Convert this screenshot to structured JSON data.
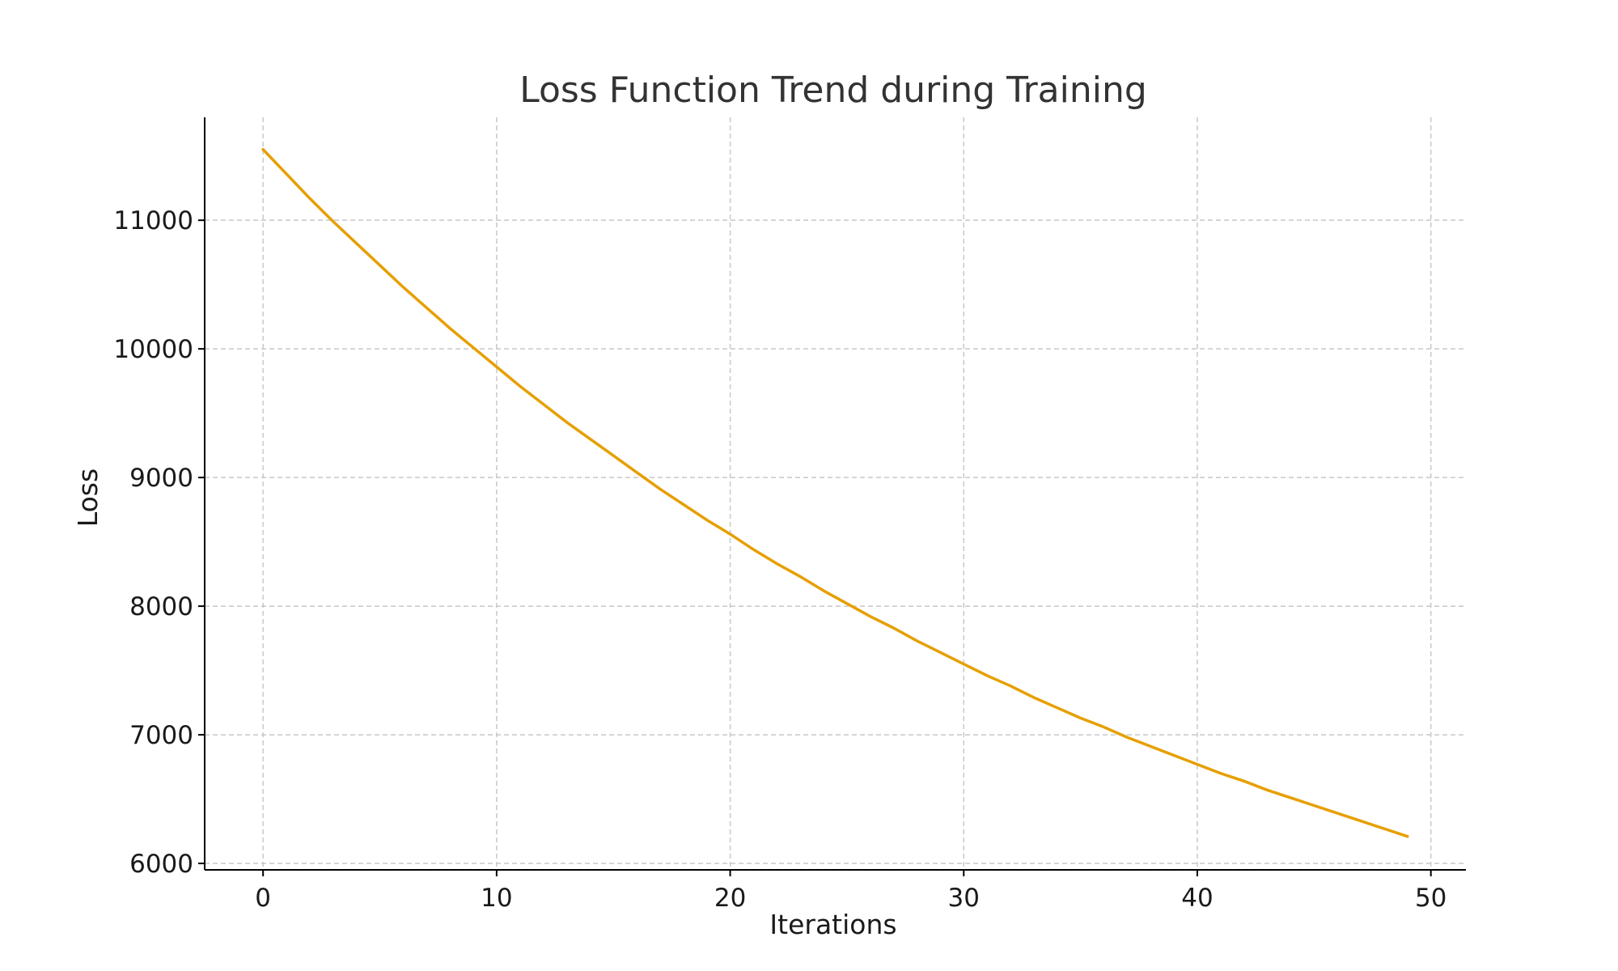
{
  "chart_data": {
    "type": "line",
    "title": "Loss Function Trend during Training",
    "xlabel": "Iterations",
    "ylabel": "Loss",
    "xlim": [
      -2.5,
      51.5
    ],
    "ylim": [
      5950,
      11800
    ],
    "grid": true,
    "xticks": [
      0,
      10,
      20,
      30,
      40,
      50
    ],
    "yticks": [
      6000,
      7000,
      8000,
      9000,
      10000,
      11000
    ],
    "series": [
      {
        "name": "Loss",
        "color": "#E69F00",
        "x": [
          0,
          1,
          2,
          3,
          4,
          5,
          6,
          7,
          8,
          9,
          10,
          11,
          12,
          13,
          14,
          15,
          16,
          17,
          18,
          19,
          20,
          21,
          22,
          23,
          24,
          25,
          26,
          27,
          28,
          29,
          30,
          31,
          32,
          33,
          34,
          35,
          36,
          37,
          38,
          39,
          40,
          41,
          42,
          43,
          44,
          45,
          46,
          47,
          48,
          49
        ],
        "values": [
          11550,
          11360,
          11170,
          10990,
          10820,
          10650,
          10480,
          10320,
          10160,
          10010,
          9860,
          9710,
          9570,
          9430,
          9300,
          9170,
          9040,
          8910,
          8790,
          8670,
          8560,
          8440,
          8330,
          8230,
          8120,
          8020,
          7920,
          7830,
          7730,
          7640,
          7550,
          7460,
          7380,
          7290,
          7210,
          7130,
          7060,
          6980,
          6910,
          6840,
          6770,
          6700,
          6640,
          6570,
          6510,
          6450,
          6390,
          6330,
          6270,
          6210
        ]
      }
    ]
  }
}
